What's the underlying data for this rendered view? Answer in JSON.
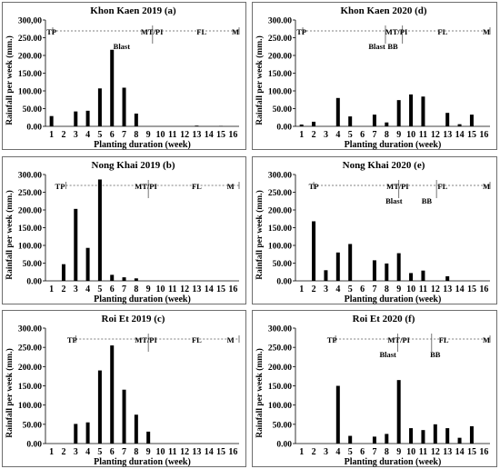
{
  "chart_data": [
    {
      "type": "bar",
      "title": "Khon Kaen 2019 (a)",
      "xlabel": "Planting duration (week)",
      "ylabel": "Rainfall per week (mm.)",
      "ylim": [
        0,
        300
      ],
      "yticks": [
        "0.00",
        "50.00",
        "100.00",
        "150.00",
        "200.00",
        "250.00",
        "300,00"
      ],
      "categories": [
        "1",
        "2",
        "3",
        "4",
        "5",
        "6",
        "7",
        "8",
        "9",
        "10",
        "11",
        "12",
        "13",
        "14",
        "15",
        "16"
      ],
      "values": [
        29,
        0,
        42,
        44,
        107,
        216,
        109,
        36,
        0,
        0,
        0,
        0,
        2,
        0,
        1,
        0
      ],
      "stage_line_week": 0.6,
      "stages": [
        {
          "label": "TP",
          "week": 0.5,
          "row": 1
        },
        {
          "label": "MT/PI",
          "week": 8.8,
          "row": 1
        },
        {
          "label": "FL",
          "week": 12.9,
          "row": 1
        },
        {
          "label": "M",
          "week": 15.7,
          "row": 1
        },
        {
          "label": "Blast",
          "week": 6.3,
          "row": 2
        }
      ],
      "markers": [
        8.85
      ]
    },
    {
      "type": "bar",
      "title": "Khon Kaen 2020 (d)",
      "xlabel": "Planting duration (week)",
      "ylabel": "Rainfall per week (mm.)",
      "ylim": [
        0,
        300
      ],
      "yticks": [
        "0.00",
        "50.00",
        "100.00",
        "150.00",
        "200.00",
        "250.00",
        "300.00"
      ],
      "categories": [
        "1",
        "2",
        "3",
        "4",
        "5",
        "6",
        "7",
        "8",
        "9",
        "10",
        "11",
        "12",
        "13",
        "14",
        "15",
        "16"
      ],
      "values": [
        5,
        13,
        0,
        80,
        28,
        0,
        33,
        11,
        74,
        90,
        84,
        0,
        38,
        6,
        33,
        0
      ],
      "stage_line_week": 0.6,
      "stages": [
        {
          "label": "TP",
          "week": 0.5,
          "row": 1
        },
        {
          "label": "MT/PI",
          "week": 8.3,
          "row": 1
        },
        {
          "label": "FL",
          "week": 12.1,
          "row": 1
        },
        {
          "label": "M",
          "week": 15.7,
          "row": 1
        },
        {
          "label": "Blast",
          "week": 6.7,
          "row": 2
        },
        {
          "label": "BB",
          "week": 8.0,
          "row": 2
        }
      ],
      "markers": [
        7.4,
        8.8
      ]
    },
    {
      "type": "bar",
      "title": "Nong Khai 2019 (b)",
      "xlabel": "Planting duration (week)",
      "ylabel": "Rainfall per week (mm.)",
      "ylim": [
        0,
        300
      ],
      "yticks": [
        "0.00",
        "50.00",
        "100.00",
        "150.00",
        "200.00",
        "250.00",
        "300.00"
      ],
      "categories": [
        "1",
        "2",
        "3",
        "4",
        "5",
        "6",
        "7",
        "8",
        "9",
        "10",
        "11",
        "12",
        "13",
        "14",
        "15",
        "16"
      ],
      "values": [
        0,
        47,
        203,
        93,
        286,
        17,
        10,
        7,
        0,
        0,
        0,
        0,
        0,
        0,
        0,
        0
      ],
      "stage_line_week": 1.7,
      "stages": [
        {
          "label": "TP",
          "week": 1.2,
          "row": 1
        },
        {
          "label": "MT/PI",
          "week": 8.3,
          "row": 1
        },
        {
          "label": "FL",
          "week": 12.5,
          "row": 1
        },
        {
          "label": "M",
          "week": 15.3,
          "row": 1
        }
      ],
      "markers": [
        8.5
      ]
    },
    {
      "type": "bar",
      "title": "Nong Khai 2020 (e)",
      "xlabel": "Planting duration (week)",
      "ylabel": "Rainfall per week (mm.)",
      "ylim": [
        0,
        300
      ],
      "yticks": [
        "0.00",
        "50.00",
        "100.00",
        "150.00",
        "200.00",
        "250.00",
        "300.00"
      ],
      "categories": [
        "1",
        "2",
        "3",
        "4",
        "5",
        "6",
        "7",
        "8",
        "9",
        "10",
        "11",
        "12",
        "13",
        "14",
        "15",
        "16"
      ],
      "values": [
        0,
        168,
        30,
        80,
        104,
        0,
        58,
        49,
        78,
        22,
        29,
        0,
        13,
        0,
        0,
        0
      ],
      "stage_line_week": 1.5,
      "stages": [
        {
          "label": "TP",
          "week": 1.5,
          "row": 1
        },
        {
          "label": "MT/PI",
          "week": 8.4,
          "row": 1
        },
        {
          "label": "FL",
          "week": 12.1,
          "row": 1
        },
        {
          "label": "M",
          "week": 15.7,
          "row": 1
        },
        {
          "label": "Blast",
          "week": 8.1,
          "row": 2
        },
        {
          "label": "BB",
          "week": 10.8,
          "row": 2
        }
      ],
      "markers": [
        8.5,
        11.6
      ]
    },
    {
      "type": "bar",
      "title": "Roi Et 2019 (c)",
      "xlabel": "Planting duration (week)",
      "ylabel": "Rainfall per week (mm.)",
      "ylim": [
        0,
        300
      ],
      "yticks": [
        "0.00",
        "50.00",
        "100.00",
        "150.00",
        "200.00",
        "250.00",
        "300.00"
      ],
      "categories": [
        "1",
        "2",
        "3",
        "4",
        "5",
        "6",
        "7",
        "8",
        "9",
        "10",
        "11",
        "12",
        "13",
        "14",
        "15",
        "16"
      ],
      "values": [
        0,
        0,
        51,
        55,
        190,
        255,
        140,
        75,
        31,
        0,
        0,
        0,
        0,
        0,
        0,
        0
      ],
      "stage_line_week": 2.5,
      "stages": [
        {
          "label": "TP",
          "week": 2.2,
          "row": 1
        },
        {
          "label": "MT/PI",
          "week": 8.3,
          "row": 1
        },
        {
          "label": "FL",
          "week": 12.5,
          "row": 1
        },
        {
          "label": "M",
          "week": 15.3,
          "row": 1
        }
      ],
      "markers": [
        8.5
      ]
    },
    {
      "type": "bar",
      "title": "Roi Et 2020 (f)",
      "xlabel": "Planting duration (week)",
      "ylabel": "Rainfall per week (mm.)",
      "ylim": [
        0,
        300
      ],
      "yticks": [
        "0.00",
        "50.00",
        "100.00",
        "150.00",
        "200.00",
        "250.00",
        "300.00"
      ],
      "categories": [
        "1",
        "2",
        "3",
        "4",
        "5",
        "6",
        "7",
        "8",
        "9",
        "10",
        "11",
        "12",
        "13",
        "14",
        "15",
        "16"
      ],
      "values": [
        0,
        0,
        0,
        150,
        20,
        0,
        18,
        25,
        165,
        40,
        35,
        50,
        40,
        15,
        45,
        0
      ],
      "stage_line_week": 3.3,
      "stages": [
        {
          "label": "TP",
          "week": 3.0,
          "row": 1
        },
        {
          "label": "MT/PI",
          "week": 8.5,
          "row": 1
        },
        {
          "label": "FL",
          "week": 12.2,
          "row": 1
        },
        {
          "label": "M",
          "week": 15.7,
          "row": 1
        },
        {
          "label": "Blast",
          "week": 7.6,
          "row": 2
        },
        {
          "label": "BB",
          "week": 11.5,
          "row": 2
        }
      ],
      "markers": [
        8.4,
        11.2
      ]
    }
  ]
}
